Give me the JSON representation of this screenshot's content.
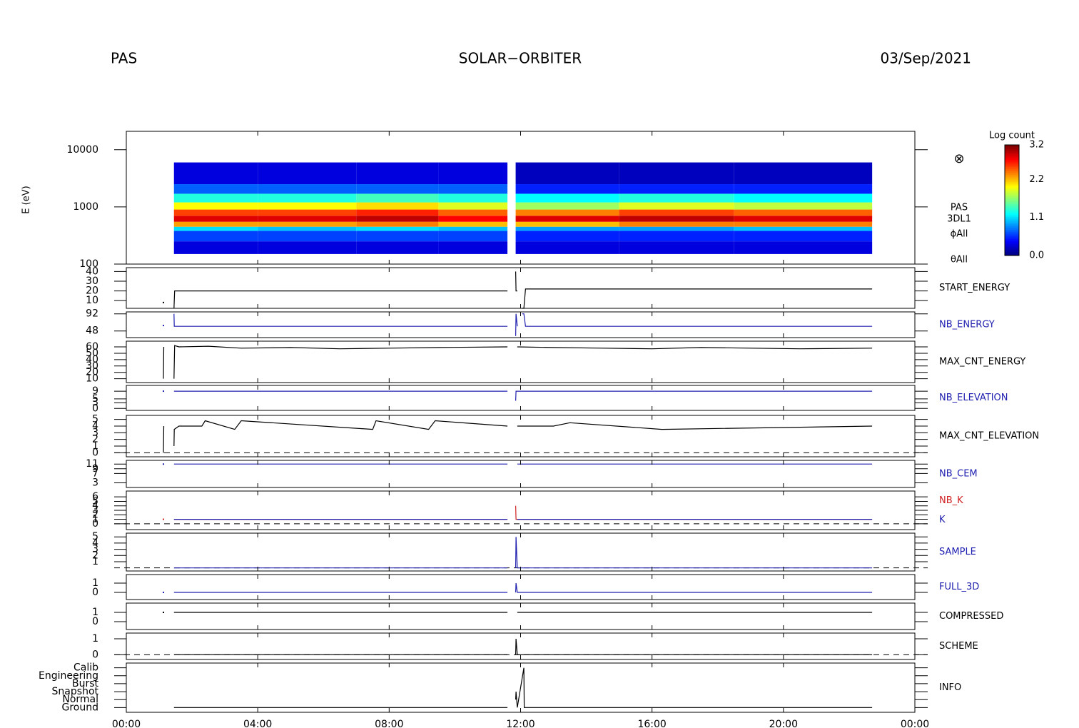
{
  "header": {
    "left": "PAS",
    "center": "SOLAR−ORBITER",
    "right": "03/Sep/2021"
  },
  "chart_data": [
    {
      "type": "heatmap",
      "ylabel": "E (eV)",
      "log_y": true,
      "xlim": [
        0,
        24
      ],
      "ylim": [
        100,
        21000
      ],
      "yticks": [
        100,
        1000,
        10000
      ],
      "x": [
        1.45,
        4,
        7,
        9.5,
        11.6,
        11.85,
        15,
        18.5,
        22.7
      ],
      "y": [
        150,
        250,
        380,
        450,
        550,
        700,
        900,
        1200,
        1700,
        2500,
        6000
      ],
      "values": [
        [
          0.3,
          0.3,
          0.3,
          0.3,
          null,
          0.3,
          0.3,
          0.3
        ],
        [
          0.6,
          0.6,
          0.6,
          0.6,
          null,
          0.5,
          0.5,
          0.5
        ],
        [
          1.1,
          1.0,
          1.1,
          1.0,
          null,
          0.9,
          0.9,
          1.0
        ],
        [
          2.3,
          2.3,
          2.4,
          2.2,
          null,
          2.2,
          2.4,
          2.4
        ],
        [
          2.9,
          2.9,
          3.0,
          2.8,
          null,
          2.9,
          3.0,
          2.9
        ],
        [
          2.6,
          2.6,
          2.7,
          2.5,
          null,
          2.4,
          2.6,
          2.5
        ],
        [
          2.0,
          2.0,
          2.1,
          1.9,
          null,
          1.7,
          1.9,
          1.8
        ],
        [
          1.3,
          1.3,
          1.4,
          1.3,
          null,
          1.2,
          1.3,
          1.2
        ],
        [
          0.7,
          0.7,
          0.7,
          0.7,
          null,
          0.5,
          0.5,
          0.5
        ],
        [
          0.3,
          0.3,
          0.3,
          0.3,
          null,
          0.2,
          0.2,
          0.2
        ]
      ],
      "clim": [
        0,
        3.2
      ],
      "colorbar_title": "Log count",
      "cticks": [
        {
          "value": 0,
          "label": "0.0"
        },
        1.1,
        2.2,
        3.2
      ],
      "annotations": [
        "⊗",
        "PAS",
        "3DL1",
        "ϕAll",
        "θAll"
      ]
    },
    {
      "type": "line",
      "xlim": [
        0,
        24
      ],
      "ylim": [
        2,
        44
      ],
      "yticks": [
        10,
        20,
        30,
        40
      ],
      "series": [
        {
          "name": "START_ENERGY",
          "color": "#000000",
          "x": [
            1.13,
            1.3,
            1.45,
            1.47,
            11.6,
            11.7,
            11.85,
            11.86,
            11.9,
            11.95,
            12.05,
            12.1,
            12.15,
            22.7
          ],
          "values": [
            8,
            null,
            2,
            20,
            20,
            null,
            40,
            20,
            20,
            null,
            2,
            2,
            22,
            22
          ]
        }
      ]
    },
    {
      "type": "line",
      "xlim": [
        0,
        24
      ],
      "ylim": [
        31,
        97
      ],
      "yticks": [
        48,
        92
      ],
      "series": [
        {
          "name": "NB_ENERGY",
          "color": "#2020b0",
          "x": [
            1.13,
            1.3,
            1.45,
            1.46,
            1.5,
            11.6,
            11.7,
            11.85,
            11.86,
            11.9,
            12.0,
            12.05,
            12.1,
            12.15,
            22.7
          ],
          "values": [
            62,
            null,
            92,
            60,
            60,
            60,
            null,
            35,
            92,
            60,
            null,
            92,
            92,
            60,
            60
          ]
        }
      ]
    },
    {
      "type": "line",
      "xlim": [
        0,
        24
      ],
      "ylim": [
        4,
        69
      ],
      "yticks": [
        10,
        20,
        30,
        40,
        50,
        60
      ],
      "series": [
        {
          "name": "MAX_CNT_ENERGY",
          "color": "#000000",
          "x": [
            1.13,
            1.14,
            1.3,
            1.45,
            1.47,
            1.6,
            2.5,
            3.5,
            5,
            6.5,
            8,
            9.5,
            11.6,
            11.7,
            11.9,
            13,
            14.5,
            16,
            17.5,
            19,
            20.5,
            22.7
          ],
          "values": [
            10,
            60,
            null,
            10,
            62,
            60,
            61,
            58,
            59,
            57,
            58,
            59,
            60,
            null,
            60,
            59,
            58,
            57,
            59,
            58,
            57,
            58
          ]
        }
      ]
    },
    {
      "type": "line",
      "xlim": [
        0,
        24
      ],
      "ylim": [
        -1,
        12
      ],
      "yticks": [
        0,
        3,
        5,
        9
      ],
      "series": [
        {
          "name": "NB_ELEVATION",
          "color": "#2020b0",
          "x": [
            1.13,
            1.3,
            1.45,
            11.6,
            11.7,
            11.85,
            11.86,
            22.7
          ],
          "values": [
            9,
            null,
            9,
            9,
            null,
            4,
            9,
            9
          ]
        }
      ]
    },
    {
      "type": "line",
      "xlim": [
        0,
        24
      ],
      "ylim": [
        -0.6,
        5.6
      ],
      "yticks": [
        0,
        1,
        2,
        3,
        4,
        5
      ],
      "zero_line": true,
      "series": [
        {
          "name": "MAX_CNT_ELEVATION",
          "color": "#000000",
          "x": [
            1.13,
            1.14,
            1.3,
            1.45,
            1.46,
            1.6,
            2.3,
            2.4,
            3.3,
            3.5,
            7.5,
            7.6,
            9.2,
            9.4,
            11.6,
            11.7,
            11.9,
            13,
            13.5,
            16.3,
            22.7
          ],
          "values": [
            0,
            4,
            null,
            1,
            3.5,
            4,
            4,
            4.8,
            3.5,
            4.8,
            3.5,
            4.8,
            3.5,
            4.8,
            4,
            null,
            4,
            4,
            4.5,
            3.5,
            4
          ]
        }
      ]
    },
    {
      "type": "line",
      "xlim": [
        0,
        24
      ],
      "ylim": [
        1,
        12.6
      ],
      "yticks": [
        3,
        7,
        9,
        11
      ],
      "series": [
        {
          "name": "NB_CEM",
          "color": "#2020b0",
          "x": [
            1.13,
            1.3,
            1.45,
            11.6,
            11.7,
            11.9,
            22.7
          ],
          "values": [
            11,
            null,
            11,
            11,
            null,
            11,
            11
          ]
        }
      ]
    },
    {
      "type": "line",
      "xlim": [
        0,
        24
      ],
      "ylim": [
        -1.3,
        7.3
      ],
      "yticks": [
        0,
        1,
        2,
        3,
        4,
        5,
        6
      ],
      "zero_line": true,
      "series": [
        {
          "name": "NB_K",
          "color": "#d02020",
          "x": [
            1.13,
            1.3,
            1.45,
            11.6,
            11.7,
            11.85,
            11.86,
            11.9,
            22.7
          ],
          "values": [
            1,
            null,
            1,
            1,
            null,
            4,
            1,
            1,
            1
          ]
        },
        {
          "name": "K",
          "color": "#2020b0",
          "x": [
            1.45,
            11.6,
            11.7,
            11.9,
            22.7
          ],
          "values": [
            1,
            1,
            null,
            1,
            1
          ]
        }
      ]
    },
    {
      "type": "line",
      "xlim": [
        0,
        24
      ],
      "ylim": [
        -0.5,
        5.6
      ],
      "yticks": [
        1,
        2,
        3,
        4,
        5
      ],
      "zero_line": true,
      "series": [
        {
          "name": "SAMPLE",
          "color": "#2020b0",
          "x": [
            1.45,
            11.6,
            11.7,
            11.85,
            11.86,
            11.9,
            22.7
          ],
          "values": [
            0,
            0,
            null,
            0,
            5,
            0,
            0
          ]
        }
      ]
    },
    {
      "type": "line",
      "xlim": [
        0,
        24
      ],
      "ylim": [
        -0.77,
        1.92
      ],
      "yticks": [
        0,
        1
      ],
      "series": [
        {
          "name": "FULL_3D",
          "color": "#2020b0",
          "x": [
            1.13,
            1.3,
            1.45,
            11.6,
            11.7,
            11.85,
            11.86,
            11.9,
            22.7
          ],
          "values": [
            0,
            null,
            0,
            0,
            null,
            0,
            1,
            0,
            0
          ]
        }
      ]
    },
    {
      "type": "line",
      "xlim": [
        0,
        24
      ],
      "ylim": [
        -0.85,
        2.0
      ],
      "yticks": [
        0,
        1
      ],
      "series": [
        {
          "name": "COMPRESSED",
          "color": "#000000",
          "x": [
            1.13,
            1.3,
            1.45,
            11.6,
            11.7,
            11.9,
            22.7
          ],
          "values": [
            1,
            null,
            1,
            1,
            null,
            1,
            1
          ]
        }
      ]
    },
    {
      "type": "line",
      "xlim": [
        0,
        24
      ],
      "ylim": [
        -0.3,
        1.36
      ],
      "yticks": [
        0,
        1
      ],
      "zero_line": true,
      "series": [
        {
          "name": "SCHEME",
          "color": "#000000",
          "x": [
            1.45,
            11.6,
            11.7,
            11.85,
            11.86,
            11.9,
            22.7
          ],
          "values": [
            0,
            0,
            null,
            0,
            1,
            0,
            0
          ]
        }
      ]
    },
    {
      "type": "line",
      "xlim": [
        0,
        24
      ],
      "ylim": [
        -0.6,
        5.6
      ],
      "yticks": [
        {
          "value": 0,
          "label": "Ground"
        },
        {
          "value": 1,
          "label": "Normal"
        },
        {
          "value": 2,
          "label": "Snapshot"
        },
        {
          "value": 3,
          "label": "Burst"
        },
        {
          "value": 4,
          "label": "Engineering"
        },
        {
          "value": 5,
          "label": "Calib"
        }
      ],
      "xticks": [
        {
          "value": 0,
          "label": "00:00"
        },
        {
          "value": 4,
          "label": "04:00"
        },
        {
          "value": 8,
          "label": "08:00"
        },
        {
          "value": 12,
          "label": "12:00"
        },
        {
          "value": 16,
          "label": "16:00"
        },
        {
          "value": 20,
          "label": "20:00"
        },
        {
          "value": 24,
          "label": "00:00"
        }
      ],
      "series": [
        {
          "name": "INFO",
          "color": "#000000",
          "x": [
            1.45,
            11.6,
            11.7,
            11.85,
            11.86,
            11.9,
            12.1,
            12.11,
            12.15,
            22.7
          ],
          "values": [
            0,
            0,
            null,
            1,
            2,
            0,
            5,
            0,
            0,
            0
          ]
        }
      ]
    }
  ]
}
